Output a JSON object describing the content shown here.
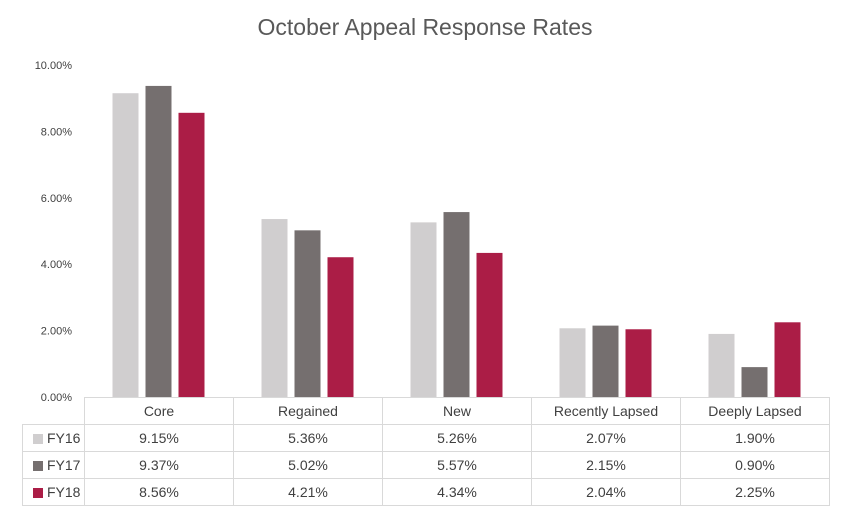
{
  "chart_data": {
    "type": "bar",
    "title": "October Appeal Response Rates",
    "categories": [
      "Core",
      "Regained",
      "New",
      "Recently Lapsed",
      "Deeply Lapsed"
    ],
    "series": [
      {
        "name": "FY16",
        "color": "#d0cecf",
        "values": [
          9.15,
          5.36,
          5.26,
          2.07,
          1.9
        ],
        "labels": [
          "9.15%",
          "5.36%",
          "5.26%",
          "2.07%",
          "1.90%"
        ]
      },
      {
        "name": "FY17",
        "color": "#756f6f",
        "values": [
          9.37,
          5.02,
          5.57,
          2.15,
          0.9
        ],
        "labels": [
          "9.37%",
          "5.02%",
          "5.57%",
          "2.15%",
          "0.90%"
        ]
      },
      {
        "name": "FY18",
        "color": "#ab1d46",
        "values": [
          8.56,
          4.21,
          4.34,
          2.04,
          2.25
        ],
        "labels": [
          "8.56%",
          "4.21%",
          "4.34%",
          "2.04%",
          "2.25%"
        ]
      }
    ],
    "ylim": [
      0,
      10
    ],
    "yticks": [
      "0.00%",
      "2.00%",
      "4.00%",
      "6.00%",
      "8.00%",
      "10.00%"
    ],
    "grid": false,
    "legend": "data table below chart"
  }
}
